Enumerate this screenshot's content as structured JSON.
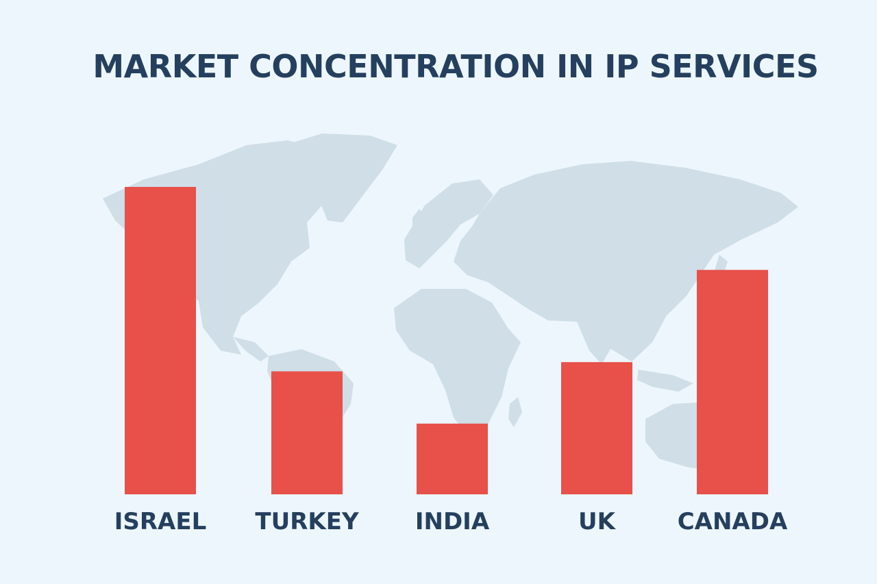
{
  "chart_data": {
    "type": "bar",
    "title": "MARKET CONCENTRATION IN IP SERVICES",
    "categories": [
      "ISRAEL",
      "TURKEY",
      "INDIA",
      "UK",
      "CANADA"
    ],
    "values": [
      100,
      40,
      23,
      43,
      73
    ],
    "ylim": [
      0,
      100
    ],
    "xlabel": "",
    "ylabel": "",
    "grid": false,
    "legend": "none",
    "background": "world-map",
    "colors": {
      "bar": "#e8504a",
      "text": "#253f5e",
      "background": "#ecf6fc",
      "map": "#cfdee7"
    }
  }
}
